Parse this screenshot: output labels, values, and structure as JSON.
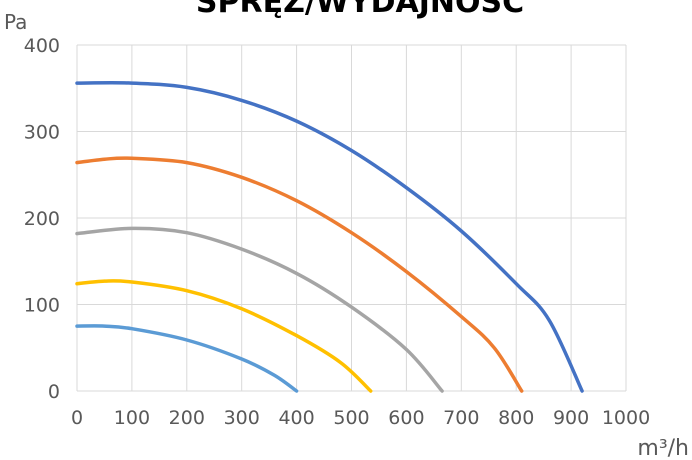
{
  "chart_data": {
    "type": "line",
    "title": "SPRĘŻ/WYDAJNOŚĆ",
    "ylabel": "Pa",
    "xlabel": "m³/h",
    "xlim": [
      0,
      1000
    ],
    "ylim": [
      0,
      400
    ],
    "x_ticks": [
      "0",
      "100",
      "200",
      "300",
      "400",
      "500",
      "600",
      "700",
      "800",
      "900",
      "1000"
    ],
    "y_ticks": [
      "0",
      "100",
      "200",
      "300",
      "400"
    ],
    "grid": true,
    "legend": "none",
    "series": [
      {
        "color": "#4472c4",
        "points": [
          [
            0,
            356
          ],
          [
            100,
            356
          ],
          [
            200,
            351
          ],
          [
            300,
            336
          ],
          [
            400,
            312
          ],
          [
            500,
            278
          ],
          [
            600,
            235
          ],
          [
            700,
            185
          ],
          [
            800,
            124
          ],
          [
            860,
            82
          ],
          [
            920,
            0
          ]
        ]
      },
      {
        "color": "#ed7d31",
        "points": [
          [
            0,
            264
          ],
          [
            50,
            268
          ],
          [
            100,
            269
          ],
          [
            200,
            264
          ],
          [
            300,
            247
          ],
          [
            400,
            220
          ],
          [
            500,
            183
          ],
          [
            600,
            138
          ],
          [
            700,
            86
          ],
          [
            760,
            50
          ],
          [
            810,
            0
          ]
        ]
      },
      {
        "color": "#a5a5a5",
        "points": [
          [
            0,
            182
          ],
          [
            100,
            188
          ],
          [
            200,
            183
          ],
          [
            300,
            164
          ],
          [
            400,
            136
          ],
          [
            500,
            97
          ],
          [
            600,
            48
          ],
          [
            665,
            0
          ]
        ]
      },
      {
        "color": "#ffc000",
        "points": [
          [
            0,
            124
          ],
          [
            50,
            127
          ],
          [
            100,
            126
          ],
          [
            200,
            116
          ],
          [
            300,
            95
          ],
          [
            400,
            64
          ],
          [
            480,
            33
          ],
          [
            535,
            0
          ]
        ]
      },
      {
        "color": "#5b9bd5",
        "points": [
          [
            0,
            75
          ],
          [
            50,
            75
          ],
          [
            100,
            72
          ],
          [
            200,
            59
          ],
          [
            300,
            37
          ],
          [
            360,
            18
          ],
          [
            400,
            0
          ]
        ]
      }
    ]
  }
}
